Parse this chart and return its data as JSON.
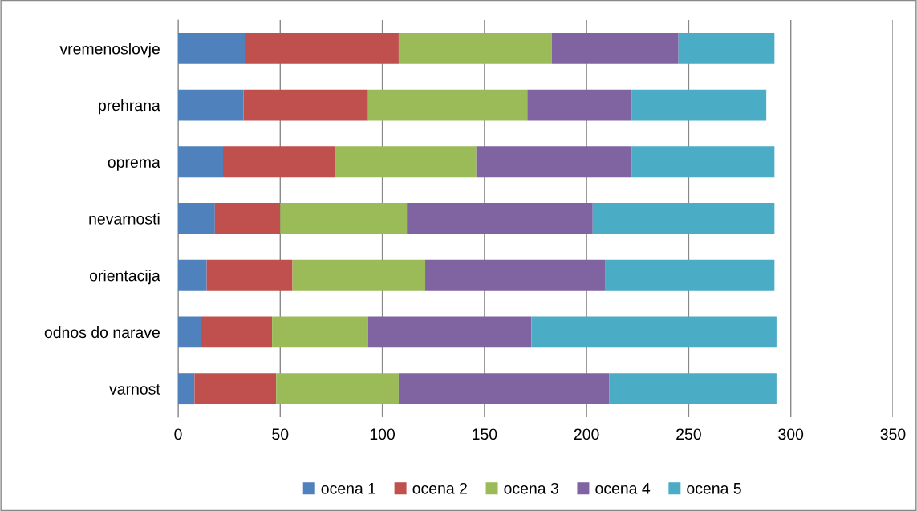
{
  "chart_data": {
    "type": "bar",
    "orientation": "horizontal",
    "stacked": true,
    "categories": [
      "vremenoslovje",
      "prehrana",
      "oprema",
      "nevarnosti",
      "orientacija",
      "odnos do narave",
      "varnost"
    ],
    "series": [
      {
        "name": "ocena 1",
        "color": "#4f81bd",
        "values": [
          33,
          32,
          22,
          18,
          14,
          11,
          8
        ]
      },
      {
        "name": "ocena 2",
        "color": "#c0504d",
        "values": [
          75,
          61,
          55,
          32,
          42,
          35,
          40
        ]
      },
      {
        "name": "ocena 3",
        "color": "#9bbb59",
        "values": [
          75,
          78,
          69,
          62,
          65,
          47,
          60
        ]
      },
      {
        "name": "ocena 4",
        "color": "#8064a2",
        "values": [
          62,
          51,
          76,
          91,
          88,
          80,
          103
        ]
      },
      {
        "name": "ocena 5",
        "color": "#4bacc6",
        "values": [
          47,
          66,
          70,
          89,
          83,
          120,
          82
        ]
      }
    ],
    "xlim": [
      0,
      350
    ],
    "xticks": [
      0,
      50,
      100,
      150,
      200,
      250,
      300,
      350
    ],
    "grid": "x",
    "legend": "bottom"
  }
}
